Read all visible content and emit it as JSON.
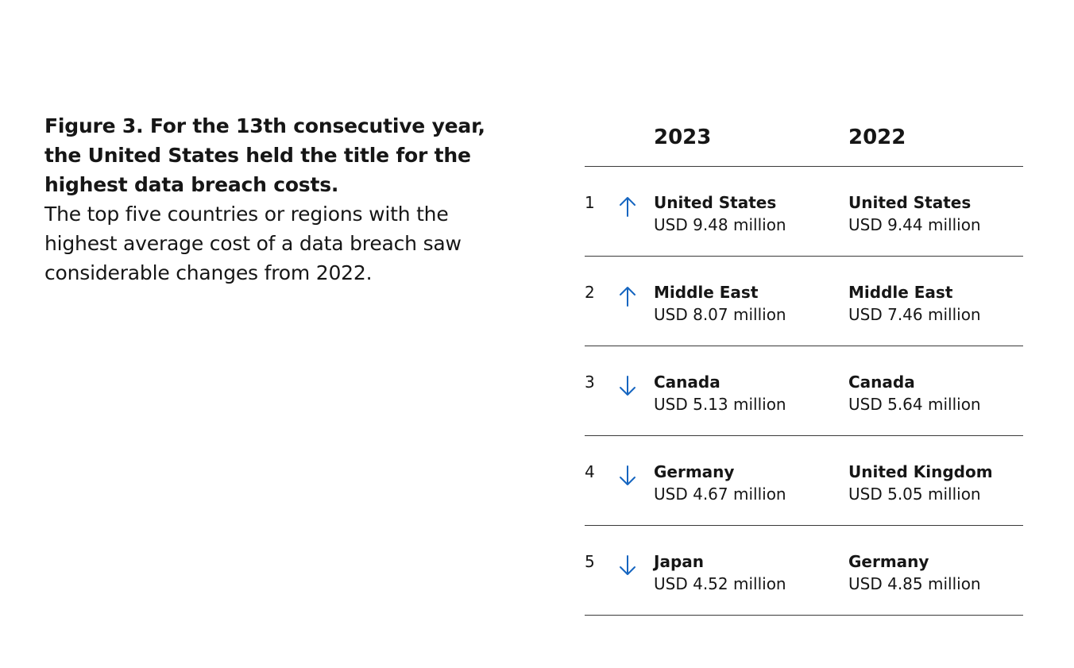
{
  "caption": {
    "title": "Figure 3. For the 13th consecutive year, the United States held the title for the highest data breach costs.",
    "body": "The top five countries or regions with the highest average cost of a data breach saw considerable changes from 2022."
  },
  "colors": {
    "text": "#161616",
    "arrow": "#1565c0",
    "rule": "#3a3a3a"
  },
  "chart_data": {
    "type": "table",
    "columns": [
      "2023",
      "2022"
    ],
    "rows": [
      {
        "rank": "1",
        "trend": "up",
        "y2023": {
          "country": "United States",
          "cost": "USD 9.48 million",
          "value": 9.48
        },
        "y2022": {
          "country": "United States",
          "cost": "USD 9.44 million",
          "value": 9.44
        }
      },
      {
        "rank": "2",
        "trend": "up",
        "y2023": {
          "country": "Middle East",
          "cost": "USD 8.07 million",
          "value": 8.07
        },
        "y2022": {
          "country": "Middle East",
          "cost": "USD 7.46 million",
          "value": 7.46
        }
      },
      {
        "rank": "3",
        "trend": "down",
        "y2023": {
          "country": "Canada",
          "cost": "USD 5.13 million",
          "value": 5.13
        },
        "y2022": {
          "country": "Canada",
          "cost": "USD 5.64 million",
          "value": 5.64
        }
      },
      {
        "rank": "4",
        "trend": "down",
        "y2023": {
          "country": "Germany",
          "cost": "USD 4.67 million",
          "value": 4.67
        },
        "y2022": {
          "country": "United Kingdom",
          "cost": "USD 5.05 million",
          "value": 5.05
        }
      },
      {
        "rank": "5",
        "trend": "down",
        "y2023": {
          "country": "Japan",
          "cost": "USD 4.52 million",
          "value": 4.52
        },
        "y2022": {
          "country": "Germany",
          "cost": "USD 4.85 million",
          "value": 4.85
        }
      }
    ]
  }
}
